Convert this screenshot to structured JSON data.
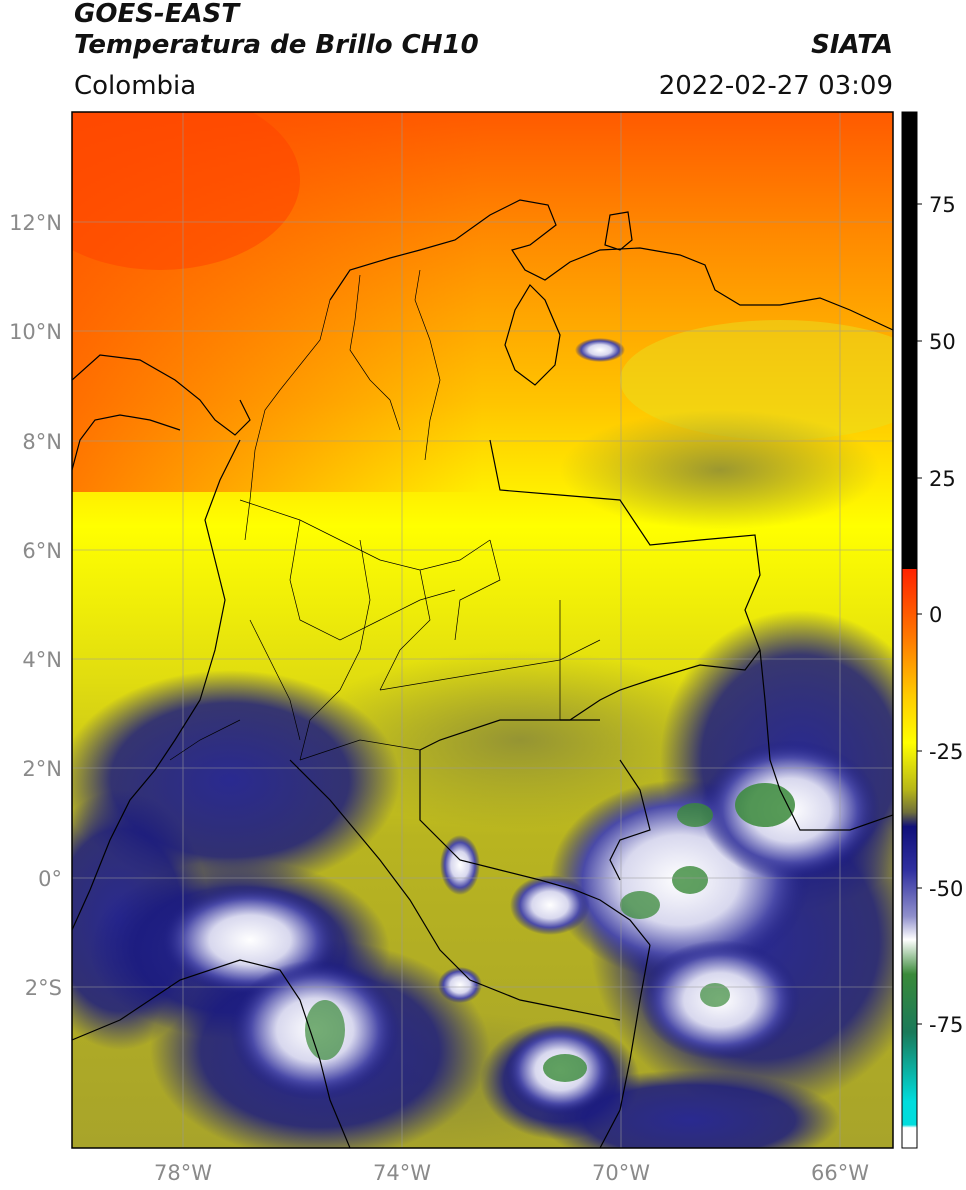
{
  "header": {
    "satellite": "GOES-EAST",
    "product": "Temperatura de Brillo CH10",
    "region": "Colombia",
    "source": "SIATA",
    "datetime": "2022-02-27 03:09"
  },
  "axes": {
    "lat_ticks": [
      "12°N",
      "10°N",
      "8°N",
      "6°N",
      "4°N",
      "2°N",
      "0°",
      "2°S"
    ],
    "lon_ticks": [
      "78°W",
      "74°W",
      "70°W",
      "66°W"
    ]
  },
  "colorbar": {
    "ticks": [
      "75",
      "50",
      "25",
      "0",
      "-25",
      "-50",
      "-75"
    ],
    "colors": {
      "top_black": "#000000",
      "red": "#ff2200",
      "orange": "#ff8800",
      "yellow": "#ffff00",
      "olive": "#b8b818",
      "dark_olive": "#70703a",
      "navy": "#10107a",
      "blue": "#4040b0",
      "white": "#ffffff",
      "green": "#2a8a2a",
      "cyan": "#00dddd"
    }
  },
  "map_colors": {
    "warm_orange": "#ff5500",
    "orange": "#ff9900",
    "yellow": "#ffee00",
    "olive": "#c8c020",
    "dark_olive": "#9a9a30",
    "navy": "#1a1a80",
    "white_cloud": "#e8e8f4",
    "green_core": "#3a8a3a"
  }
}
